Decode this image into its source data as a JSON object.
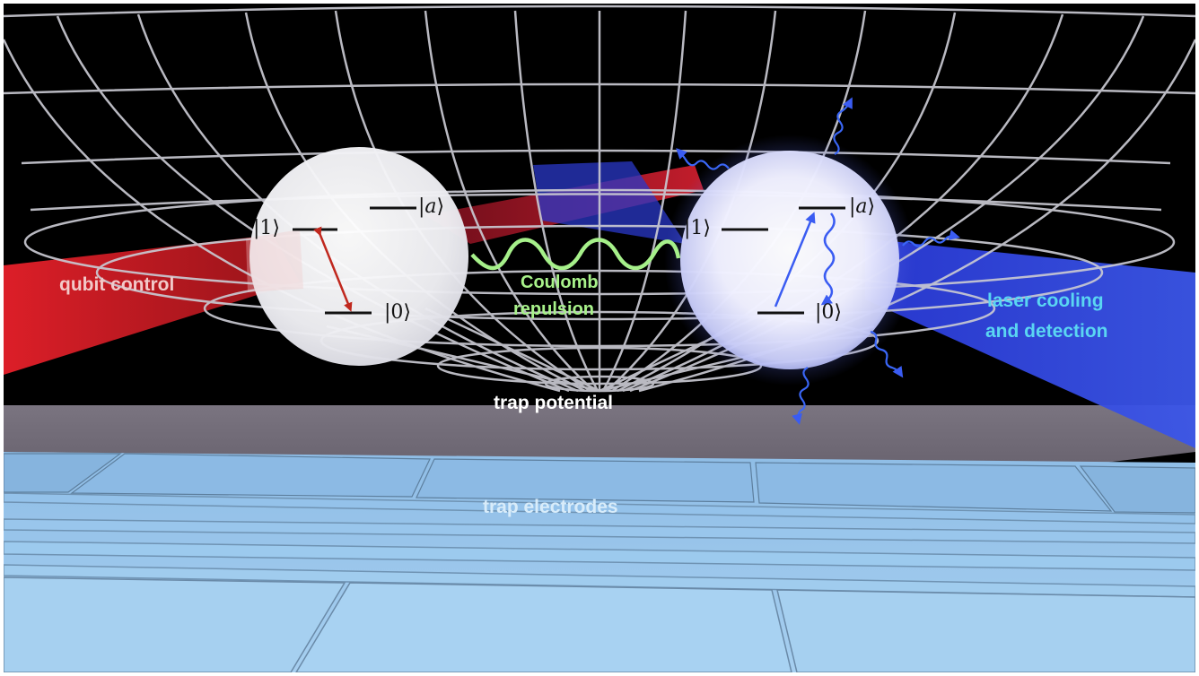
{
  "labels": {
    "qubit_control": "qubit control",
    "coulomb_line1": "Coulomb",
    "coulomb_line2": "repulsion",
    "laser_line1": "laser cooling",
    "laser_line2": "and detection",
    "trap_potential": "trap potential",
    "trap_electrodes": "trap electrodes"
  },
  "left_ion": {
    "ket_1": "|1⟩",
    "ket_0": "|0⟩",
    "ket_a_open": "|",
    "ket_a_sym": "a",
    "ket_a_close": "⟩"
  },
  "right_ion": {
    "ket_1": "|1⟩",
    "ket_0": "|0⟩",
    "ket_a_open": "|",
    "ket_a_sym": "a",
    "ket_a_close": "⟩"
  },
  "colors": {
    "qubit_control": "#f2c9c9",
    "coulomb": "#a8f28a",
    "laser": "#5ad6f2",
    "trap_potential": "#ffffff",
    "trap_electrodes": "#d8ecfa",
    "red_beam": "#d81e1e",
    "blue_beam": "#2233e0",
    "grid": "#c8c8d0",
    "electrode": "#8fbfe6"
  },
  "icons": {
    "left_transition": "red-double-arrow-icon",
    "right_excitation": "blue-arrow-icon",
    "right_decay": "blue-wavy-arrow-icon",
    "coulomb": "green-wave-icon",
    "photons": "blue-wavy-photon-icon"
  }
}
